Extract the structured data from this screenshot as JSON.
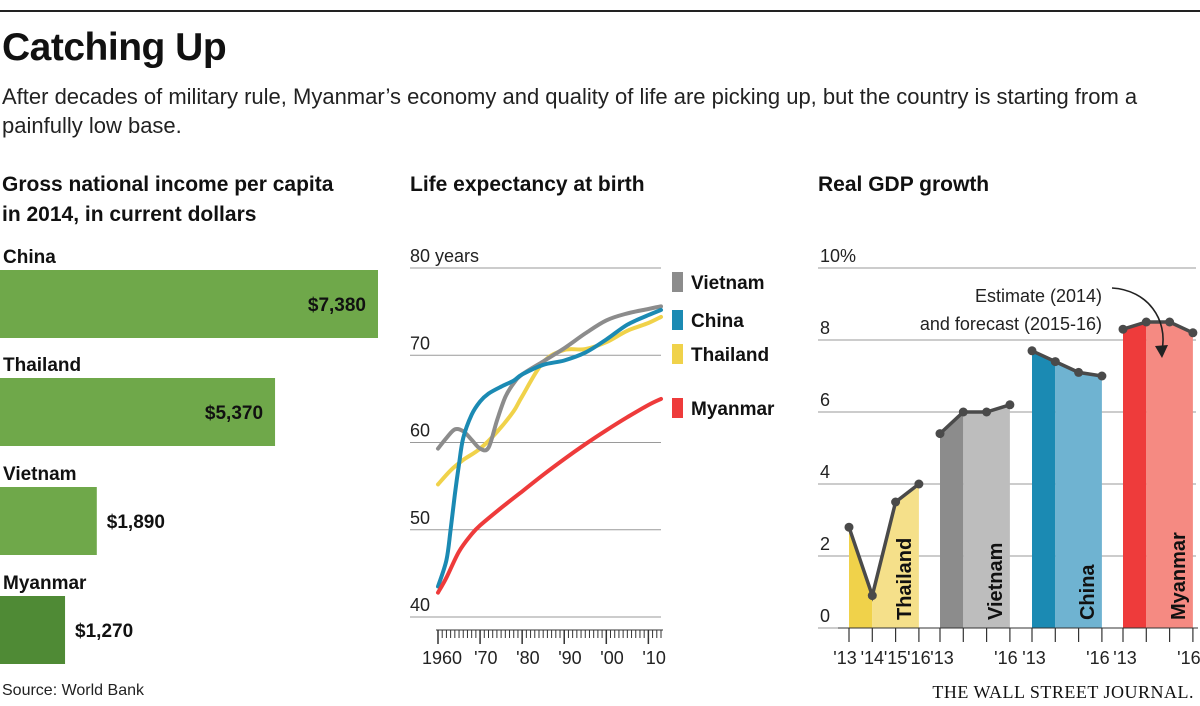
{
  "header": {
    "title": "Catching Up",
    "subtitle": "After decades of military rule, Myanmar’s economy and quality of life are picking up, but the country  is starting from a painfully low base."
  },
  "footer": {
    "source": "Source: World Bank",
    "credit": "THE WALL STREET JOURNAL."
  },
  "colors": {
    "green": "#6fa84a",
    "dark_green": "#4f8a35",
    "vietnam": "#8c8c8c",
    "china": "#1b8ab3",
    "thailand": "#f0d24a",
    "myanmar": "#ee3b3b"
  },
  "chart_data": [
    {
      "type": "bar",
      "orientation": "horizontal",
      "title": "Gross national income per capita in 2014, in current dollars",
      "title_lines": [
        "Gross national income per capita",
        "in 2014, in current dollars"
      ],
      "categories": [
        "China",
        "Thailand",
        "Vietnam",
        "Myanmar"
      ],
      "values": [
        7380,
        5370,
        1890,
        1270
      ],
      "value_labels": [
        "$7,380",
        "$5,370",
        "$1,890",
        "$1,270"
      ],
      "xlim": [
        0,
        7380
      ]
    },
    {
      "type": "line",
      "title": "Life expectancy at birth",
      "y_unit_label": "80 years",
      "yticks": [
        40,
        50,
        60,
        70,
        80
      ],
      "ytick_labels": [
        "40",
        "50",
        "60",
        "70",
        "80 years"
      ],
      "ylim": [
        40,
        80
      ],
      "xlim": [
        1960,
        2013
      ],
      "xtick_labels": [
        "1960",
        "'70",
        "'80",
        "'90",
        "'00",
        "'10"
      ],
      "xtick_values": [
        1960,
        1970,
        1980,
        1990,
        2000,
        2010
      ],
      "series": [
        {
          "name": "Vietnam",
          "color_key": "vietnam",
          "x": [
            1960,
            1962,
            1964,
            1966,
            1968,
            1970,
            1972,
            1974,
            1976,
            1978,
            1980,
            1985,
            1990,
            1995,
            2000,
            2005,
            2010,
            2013
          ],
          "y": [
            59.3,
            60.5,
            61.5,
            61.3,
            60.3,
            59.3,
            59.4,
            62.5,
            65.2,
            66.8,
            67.8,
            69.3,
            70.8,
            72.5,
            74.0,
            74.8,
            75.3,
            75.6
          ]
        },
        {
          "name": "China",
          "color_key": "china",
          "x": [
            1960,
            1962,
            1963,
            1964,
            1965,
            1966,
            1968,
            1970,
            1972,
            1975,
            1978,
            1980,
            1985,
            1990,
            1995,
            2000,
            2005,
            2010,
            2013
          ],
          "y": [
            43.5,
            46.5,
            50.0,
            54.0,
            57.5,
            60.5,
            63.2,
            64.7,
            65.6,
            66.4,
            67.1,
            67.8,
            68.9,
            69.4,
            70.3,
            71.8,
            73.5,
            74.6,
            75.2
          ]
        },
        {
          "name": "Thailand",
          "color_key": "thailand",
          "x": [
            1960,
            1963,
            1966,
            1970,
            1974,
            1978,
            1980,
            1985,
            1990,
            1995,
            2000,
            2005,
            2010,
            2013
          ],
          "y": [
            55.2,
            56.8,
            58.0,
            59.3,
            61.2,
            63.6,
            65.3,
            69.2,
            70.6,
            70.7,
            71.5,
            72.8,
            73.7,
            74.4
          ]
        },
        {
          "name": "Myanmar",
          "color_key": "myanmar",
          "x": [
            1960,
            1962,
            1965,
            1968,
            1970,
            1975,
            1980,
            1985,
            1990,
            1995,
            2000,
            2005,
            2010,
            2013
          ],
          "y": [
            42.8,
            44.5,
            47.5,
            49.5,
            50.5,
            52.5,
            54.4,
            56.3,
            58.1,
            59.8,
            61.4,
            62.9,
            64.3,
            65.0
          ]
        }
      ]
    },
    {
      "type": "bar",
      "title": "Real GDP growth",
      "y_unit_label": "10%",
      "yticks": [
        0,
        2,
        4,
        6,
        8,
        10
      ],
      "ytick_labels": [
        "0",
        "2",
        "4",
        "6",
        "8",
        "10%"
      ],
      "ylim": [
        0,
        10
      ],
      "annotation": [
        "Estimate (2014)",
        "and forecast (2015-16)"
      ],
      "years": [
        2013,
        2014,
        2015,
        2016
      ],
      "countries": [
        {
          "name": "Thailand",
          "color_key": "thailand",
          "values": [
            2.8,
            0.9,
            3.5,
            4.0
          ],
          "xtick_labels": [
            "'13",
            "'14",
            "'15",
            "'16"
          ]
        },
        {
          "name": "Vietnam",
          "color_key": "vietnam",
          "values": [
            5.4,
            6.0,
            6.0,
            6.2
          ],
          "xtick_labels": [
            "'13",
            "'16"
          ]
        },
        {
          "name": "China",
          "color_key": "china",
          "values": [
            7.7,
            7.4,
            7.1,
            7.0
          ],
          "xtick_labels": [
            "'13",
            "'16"
          ]
        },
        {
          "name": "Myanmar",
          "color_key": "myanmar",
          "values": [
            8.3,
            8.5,
            8.5,
            8.2
          ],
          "xtick_labels": [
            "'13",
            "'16"
          ]
        }
      ]
    }
  ]
}
